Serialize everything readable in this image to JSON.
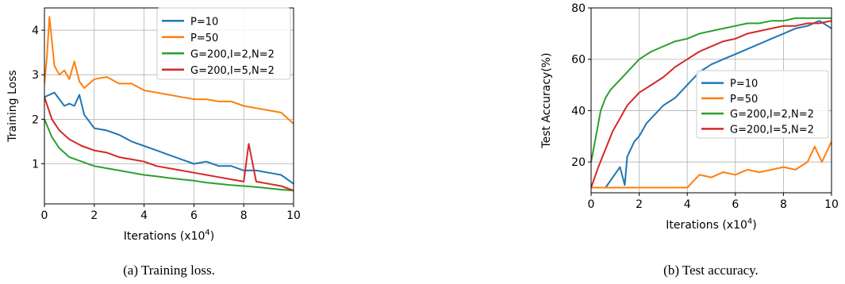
{
  "chart_data": [
    {
      "type": "line",
      "xlabel": "Iterations (x10",
      "xlabel_exp": "4",
      "xlabel_close": ")",
      "ylabel": "Training Loss",
      "xlim": [
        0,
        10
      ],
      "ylim": [
        0.1,
        4.5
      ],
      "xticks": [
        0,
        2,
        4,
        6,
        8,
        10
      ],
      "yticks": [
        1,
        2,
        3,
        4
      ],
      "grid": true,
      "legend_position": "top-right",
      "caption": "(a) Training loss.",
      "series": [
        {
          "name": "P=10",
          "color": "#1f77b4",
          "x": [
            0,
            0.2,
            0.4,
            0.6,
            0.8,
            1.0,
            1.2,
            1.4,
            1.6,
            1.8,
            2.0,
            2.5,
            3.0,
            3.5,
            4.0,
            4.5,
            5.0,
            5.5,
            6.0,
            6.5,
            7.0,
            7.5,
            8.0,
            8.5,
            9.0,
            9.5,
            10.0
          ],
          "y": [
            2.5,
            2.55,
            2.6,
            2.45,
            2.3,
            2.35,
            2.3,
            2.55,
            2.1,
            1.95,
            1.8,
            1.75,
            1.65,
            1.5,
            1.4,
            1.3,
            1.2,
            1.1,
            1.0,
            1.05,
            0.95,
            0.95,
            0.85,
            0.85,
            0.8,
            0.75,
            0.55
          ]
        },
        {
          "name": "P=50",
          "color": "#ff7f0e",
          "x": [
            0,
            0.1,
            0.2,
            0.4,
            0.6,
            0.8,
            1.0,
            1.2,
            1.4,
            1.6,
            1.8,
            2.0,
            2.5,
            3.0,
            3.5,
            4.0,
            4.5,
            5.0,
            5.5,
            6.0,
            6.5,
            7.0,
            7.5,
            8.0,
            8.5,
            9.0,
            9.5,
            10.0
          ],
          "y": [
            2.8,
            3.4,
            4.3,
            3.2,
            3.0,
            3.1,
            2.9,
            3.3,
            2.85,
            2.7,
            2.8,
            2.9,
            2.95,
            2.8,
            2.8,
            2.65,
            2.6,
            2.55,
            2.5,
            2.45,
            2.45,
            2.4,
            2.4,
            2.3,
            2.25,
            2.2,
            2.15,
            1.9
          ]
        },
        {
          "name": "G=200,I=2,N=2",
          "color": "#2ca02c",
          "x": [
            0,
            0.3,
            0.6,
            1.0,
            1.5,
            2.0,
            2.5,
            3.0,
            3.5,
            4.0,
            4.5,
            5.0,
            5.5,
            6.0,
            6.5,
            7.0,
            7.5,
            8.0,
            8.5,
            9.0,
            9.5,
            10.0
          ],
          "y": [
            2.0,
            1.6,
            1.35,
            1.15,
            1.05,
            0.95,
            0.9,
            0.85,
            0.8,
            0.75,
            0.72,
            0.68,
            0.65,
            0.62,
            0.58,
            0.55,
            0.52,
            0.5,
            0.48,
            0.45,
            0.42,
            0.4
          ]
        },
        {
          "name": "G=200,I=5,N=2",
          "color": "#d62728",
          "x": [
            0,
            0.3,
            0.6,
            1.0,
            1.5,
            2.0,
            2.5,
            3.0,
            3.5,
            4.0,
            4.5,
            5.0,
            5.5,
            6.0,
            6.5,
            7.0,
            7.5,
            8.0,
            8.2,
            8.5,
            9.0,
            9.5,
            10.0
          ],
          "y": [
            2.5,
            2.0,
            1.75,
            1.55,
            1.4,
            1.3,
            1.25,
            1.15,
            1.1,
            1.05,
            0.95,
            0.9,
            0.85,
            0.8,
            0.75,
            0.7,
            0.65,
            0.6,
            1.45,
            0.6,
            0.55,
            0.5,
            0.4
          ]
        }
      ]
    },
    {
      "type": "line",
      "xlabel": "Iterations (x10",
      "xlabel_exp": "4",
      "xlabel_close": ")",
      "ylabel": "Test Accuracy(%)",
      "xlim": [
        0,
        10
      ],
      "ylim": [
        8,
        80
      ],
      "xticks": [
        0,
        2,
        4,
        6,
        8,
        10
      ],
      "yticks": [
        20,
        40,
        60,
        80
      ],
      "grid": true,
      "legend_position": "center-right",
      "caption": "(b) Test accuracy.",
      "series": [
        {
          "name": "P=10",
          "color": "#1f77b4",
          "x": [
            0,
            0.3,
            0.6,
            0.9,
            1.2,
            1.4,
            1.5,
            1.8,
            2.0,
            2.3,
            2.6,
            3.0,
            3.5,
            4.0,
            4.5,
            5.0,
            5.5,
            6.0,
            6.5,
            7.0,
            7.5,
            8.0,
            8.5,
            9.0,
            9.5,
            10.0
          ],
          "y": [
            10,
            10,
            10,
            14,
            18,
            11,
            22,
            28,
            30,
            35,
            38,
            42,
            45,
            50,
            55,
            58,
            60,
            62,
            64,
            66,
            68,
            70,
            72,
            73,
            75,
            72
          ]
        },
        {
          "name": "P=50",
          "color": "#ff7f0e",
          "x": [
            0,
            1.0,
            2.0,
            3.0,
            4.0,
            4.2,
            4.5,
            5.0,
            5.5,
            6.0,
            6.5,
            7.0,
            7.5,
            8.0,
            8.5,
            9.0,
            9.3,
            9.6,
            10.0
          ],
          "y": [
            10,
            10,
            10,
            10,
            10,
            12,
            15,
            14,
            16,
            15,
            17,
            16,
            17,
            18,
            17,
            20,
            26,
            20,
            28
          ]
        },
        {
          "name": "G=200,I=2,N=2",
          "color": "#2ca02c",
          "x": [
            0,
            0.2,
            0.4,
            0.6,
            0.8,
            1.0,
            1.3,
            1.6,
            2.0,
            2.5,
            3.0,
            3.5,
            4.0,
            4.5,
            5.0,
            5.5,
            6.0,
            6.5,
            7.0,
            7.5,
            8.0,
            8.5,
            9.0,
            9.5,
            10.0
          ],
          "y": [
            20,
            30,
            40,
            45,
            48,
            50,
            53,
            56,
            60,
            63,
            65,
            67,
            68,
            70,
            71,
            72,
            73,
            74,
            74,
            75,
            75,
            76,
            76,
            76,
            76
          ]
        },
        {
          "name": "G=200,I=5,N=2",
          "color": "#d62728",
          "x": [
            0,
            0.3,
            0.6,
            0.9,
            1.2,
            1.5,
            2.0,
            2.5,
            3.0,
            3.5,
            4.0,
            4.5,
            5.0,
            5.5,
            6.0,
            6.5,
            7.0,
            7.5,
            8.0,
            8.5,
            9.0,
            9.5,
            10.0
          ],
          "y": [
            10,
            18,
            25,
            32,
            37,
            42,
            47,
            50,
            53,
            57,
            60,
            63,
            65,
            67,
            68,
            70,
            71,
            72,
            73,
            73,
            74,
            74,
            75
          ]
        }
      ]
    }
  ]
}
